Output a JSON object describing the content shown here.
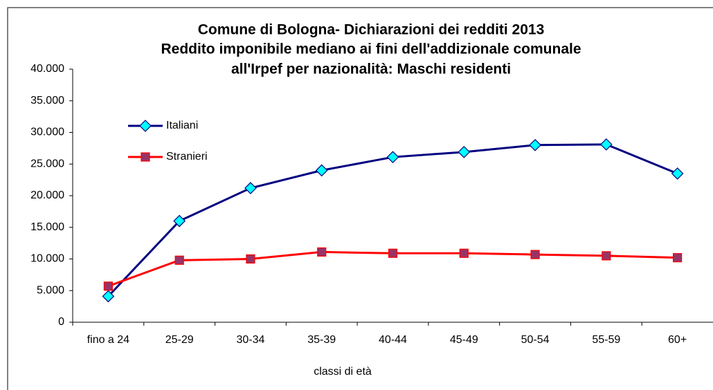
{
  "chart_data": {
    "type": "line",
    "title": [
      "Comune di Bologna- Dichiarazioni dei redditi 2013",
      "Reddito imponibile mediano ai fini dell'addizionale comunale",
      "all'Irpef per nazionalità: Maschi residenti"
    ],
    "x_label": "classi di età",
    "categories": [
      "fino a 24",
      "25-29",
      "30-34",
      "35-39",
      "40-44",
      "45-49",
      "50-54",
      "55-59",
      "60+"
    ],
    "series": [
      {
        "name": "Italiani",
        "color": "#000080",
        "marker_color": "#00ffff",
        "values": [
          4100,
          16000,
          21200,
          24000,
          26100,
          26900,
          28000,
          28100,
          23500
        ]
      },
      {
        "name": "Stranieri",
        "color": "#ff0000",
        "marker_color": "#993366",
        "values": [
          5700,
          9800,
          10000,
          11100,
          10900,
          10900,
          10700,
          10500,
          10200
        ]
      }
    ],
    "ylim": [
      0,
      40000
    ],
    "yticks": [
      0,
      {
        "value": 5000,
        "label": "5.000"
      },
      {
        "value": 10000,
        "label": "10.000"
      },
      {
        "value": 15000,
        "label": "15.000"
      },
      {
        "value": 20000,
        "label": "20.000"
      },
      {
        "value": 25000,
        "label": "25.000"
      },
      {
        "value": 30000,
        "label": "30.000"
      },
      {
        "value": 35000,
        "label": "35.000"
      },
      {
        "value": 40000,
        "label": "40.000"
      }
    ],
    "grid": false,
    "legend": "upper left"
  }
}
